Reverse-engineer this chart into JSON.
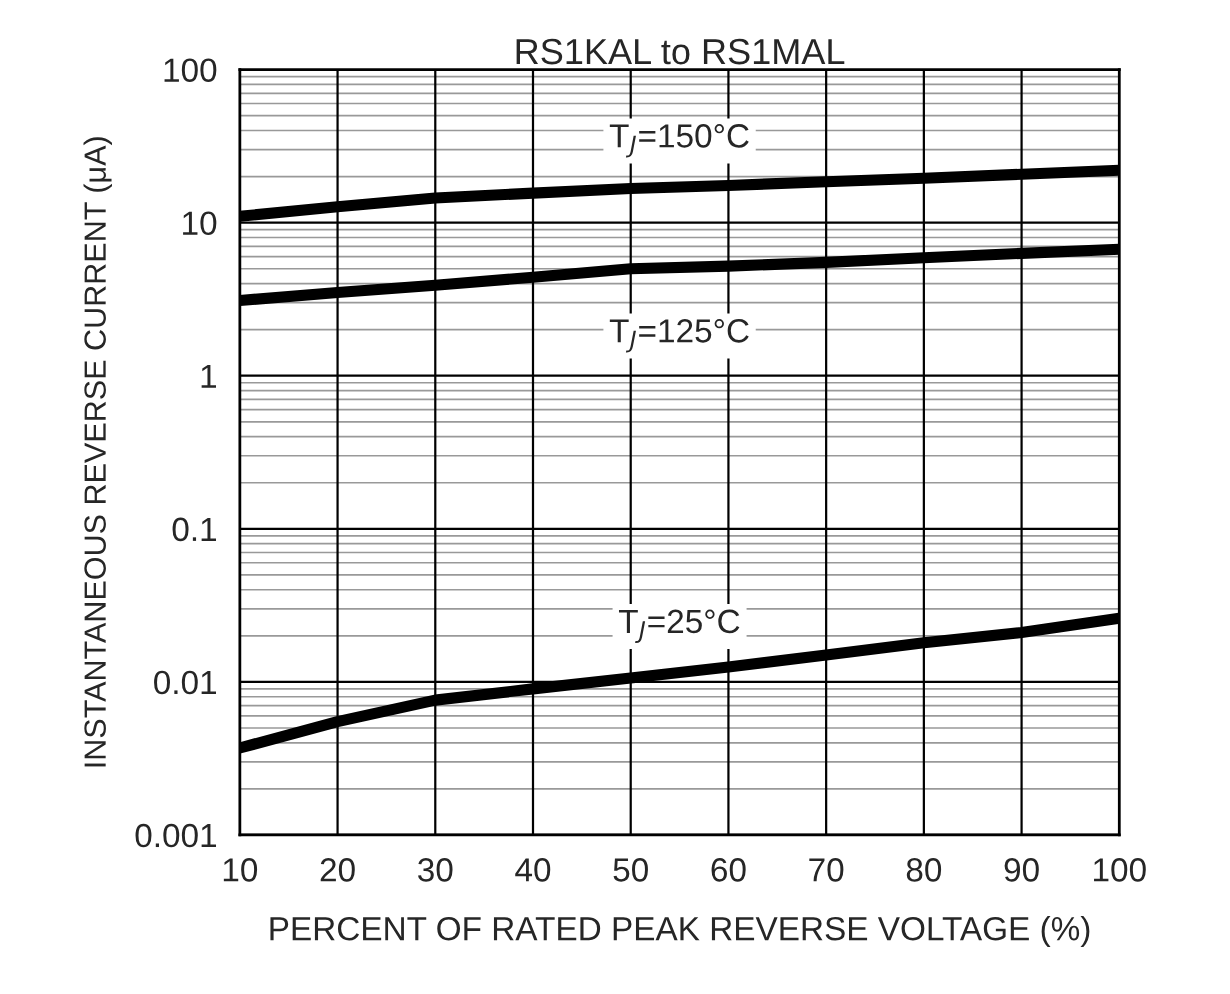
{
  "chart_data": {
    "type": "line",
    "title": "RS1KAL to RS1MAL",
    "xlabel": "PERCENT OF RATED PEAK REVERSE VOLTAGE (%)",
    "ylabel": "INSTANTANEOUS REVERSE CURRENT (μA)",
    "x": [
      10,
      20,
      30,
      40,
      50,
      60,
      70,
      80,
      90,
      100
    ],
    "series": [
      {
        "name": "T$_{J}$=150°C",
        "color": "#000000",
        "values": [
          11,
          12.7,
          14.5,
          15.6,
          16.7,
          17.5,
          18.5,
          19.5,
          20.7,
          22
        ]
      },
      {
        "name": "T$_{J}$=125°C",
        "color": "#000000",
        "values": [
          3.1,
          3.5,
          3.9,
          4.4,
          5.0,
          5.2,
          5.5,
          5.9,
          6.3,
          6.7
        ]
      },
      {
        "name": "T$_{J}$=25°C",
        "color": "#000000",
        "values": [
          0.0037,
          0.0055,
          0.0076,
          0.009,
          0.0106,
          0.0125,
          0.015,
          0.018,
          0.021,
          0.026
        ]
      }
    ],
    "log": "y",
    "xlim": [
      10,
      100
    ],
    "xticks": [
      10,
      20,
      30,
      40,
      50,
      60,
      70,
      80,
      90,
      100
    ],
    "ylim": [
      0.001,
      100
    ],
    "yticks": [
      {
        "value": 0.001,
        "label": "0.001"
      },
      {
        "value": 0.01,
        "label": "0.01"
      },
      {
        "value": 0.1,
        "label": "0.1"
      },
      1,
      10,
      100
    ],
    "grid": true,
    "legend": false,
    "marker": "none",
    "line_style": "solid"
  }
}
